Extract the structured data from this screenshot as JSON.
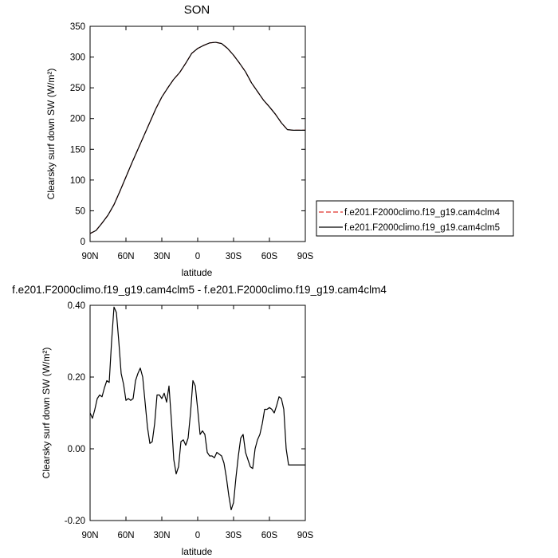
{
  "chart_data": [
    {
      "type": "line",
      "title": "SON",
      "xlabel": "latitude",
      "ylabel": "Clearsky surf down SW (W/m²)",
      "ylim": [
        0,
        350
      ],
      "yticks": [
        0,
        50,
        100,
        150,
        200,
        250,
        300,
        350
      ],
      "xlim": [
        90,
        -90
      ],
      "xticks": [
        90,
        60,
        30,
        0,
        -30,
        -60,
        -90
      ],
      "xticklabels": [
        "90N",
        "60N",
        "30N",
        "0",
        "30S",
        "60S",
        "90S"
      ],
      "legend_position": "right",
      "series": [
        {
          "name": "f.e201.F2000climo.f19_g19.cam4clm4",
          "color": "#e0302a",
          "dash": "dashed",
          "x": [
            90,
            85,
            80,
            75,
            70,
            65,
            60,
            55,
            50,
            45,
            40,
            35,
            30,
            25,
            20,
            15,
            10,
            5,
            0,
            -5,
            -10,
            -15,
            -20,
            -25,
            -30,
            -35,
            -40,
            -45,
            -50,
            -55,
            -60,
            -65,
            -70,
            -75,
            -80,
            -85,
            -90
          ],
          "y": [
            13,
            18,
            30,
            43,
            60,
            82,
            105,
            128,
            150,
            172,
            194,
            216,
            235,
            250,
            264,
            275,
            290,
            306,
            314,
            319,
            323,
            324,
            322,
            314,
            303,
            290,
            276,
            258,
            244,
            230,
            219,
            207,
            193,
            182,
            181,
            181,
            181
          ]
        },
        {
          "name": "f.e201.F2000climo.f19_g19.cam4clm5",
          "color": "#000000",
          "dash": "solid",
          "x": [
            90,
            85,
            80,
            75,
            70,
            65,
            60,
            55,
            50,
            45,
            40,
            35,
            30,
            25,
            20,
            15,
            10,
            5,
            0,
            -5,
            -10,
            -15,
            -20,
            -25,
            -30,
            -35,
            -40,
            -45,
            -50,
            -55,
            -60,
            -65,
            -70,
            -75,
            -80,
            -85,
            -90
          ],
          "y": [
            13,
            18,
            30,
            43,
            60,
            82,
            105,
            128,
            150,
            172,
            194,
            216,
            235,
            250,
            264,
            275,
            290,
            306,
            314,
            319,
            323,
            324,
            322,
            314,
            303,
            290,
            276,
            258,
            244,
            230,
            219,
            207,
            193,
            182,
            181,
            181,
            181
          ]
        }
      ]
    },
    {
      "type": "line",
      "title": "f.e201.F2000climo.f19_g19.cam4clm5 - f.e201.F2000climo.f19_g19.cam4clm4",
      "xlabel": "latitude",
      "ylabel": "Clearsky surf down SW (W/m²)",
      "ylim": [
        -0.2,
        0.4
      ],
      "yticks": [
        -0.2,
        0.0,
        0.2,
        0.4
      ],
      "yticklabels": [
        "-0.20",
        "0.00",
        "0.20",
        "0.40"
      ],
      "xlim": [
        90,
        -90
      ],
      "xticks": [
        90,
        60,
        30,
        0,
        -30,
        -60,
        -90
      ],
      "xticklabels": [
        "90N",
        "60N",
        "30N",
        "0",
        "30S",
        "60S",
        "90S"
      ],
      "series": [
        {
          "color": "#000000",
          "x": [
            90,
            88,
            86,
            84,
            82,
            80,
            78,
            76,
            74,
            72,
            70,
            68,
            66,
            64,
            62,
            60,
            58,
            56,
            54,
            52,
            50,
            48,
            46,
            44,
            42,
            40,
            38,
            36,
            34,
            32,
            30,
            28,
            26,
            24,
            22,
            20,
            18,
            16,
            14,
            12,
            10,
            8,
            6,
            4,
            2,
            0,
            -2,
            -4,
            -6,
            -8,
            -10,
            -12,
            -14,
            -16,
            -18,
            -20,
            -22,
            -24,
            -26,
            -28,
            -30,
            -32,
            -34,
            -36,
            -38,
            -40,
            -42,
            -44,
            -46,
            -48,
            -50,
            -52,
            -54,
            -56,
            -58,
            -60,
            -62,
            -64,
            -66,
            -68,
            -70,
            -72,
            -74,
            -76,
            -78,
            -80,
            -82,
            -84,
            -86,
            -88,
            -90
          ],
          "y": [
            0.1,
            0.085,
            0.11,
            0.14,
            0.15,
            0.145,
            0.17,
            0.19,
            0.185,
            0.3,
            0.395,
            0.38,
            0.3,
            0.21,
            0.18,
            0.135,
            0.14,
            0.135,
            0.14,
            0.19,
            0.21,
            0.225,
            0.2,
            0.13,
            0.06,
            0.015,
            0.02,
            0.07,
            0.15,
            0.15,
            0.14,
            0.155,
            0.13,
            0.175,
            0.08,
            -0.03,
            -0.07,
            -0.05,
            0.02,
            0.025,
            0.01,
            0.03,
            0.1,
            0.19,
            0.175,
            0.11,
            0.04,
            0.05,
            0.04,
            -0.01,
            -0.02,
            -0.02,
            -0.025,
            -0.01,
            -0.015,
            -0.02,
            -0.04,
            -0.08,
            -0.13,
            -0.17,
            -0.15,
            -0.08,
            -0.02,
            0.03,
            0.04,
            -0.01,
            -0.03,
            -0.05,
            -0.055,
            0.0,
            0.025,
            0.04,
            0.07,
            0.11,
            0.11,
            0.115,
            0.11,
            0.1,
            0.12,
            0.145,
            0.14,
            0.11,
            0.0,
            -0.045,
            -0.045,
            -0.045,
            -0.045,
            -0.045,
            -0.045,
            -0.045,
            -0.045
          ]
        }
      ]
    }
  ]
}
